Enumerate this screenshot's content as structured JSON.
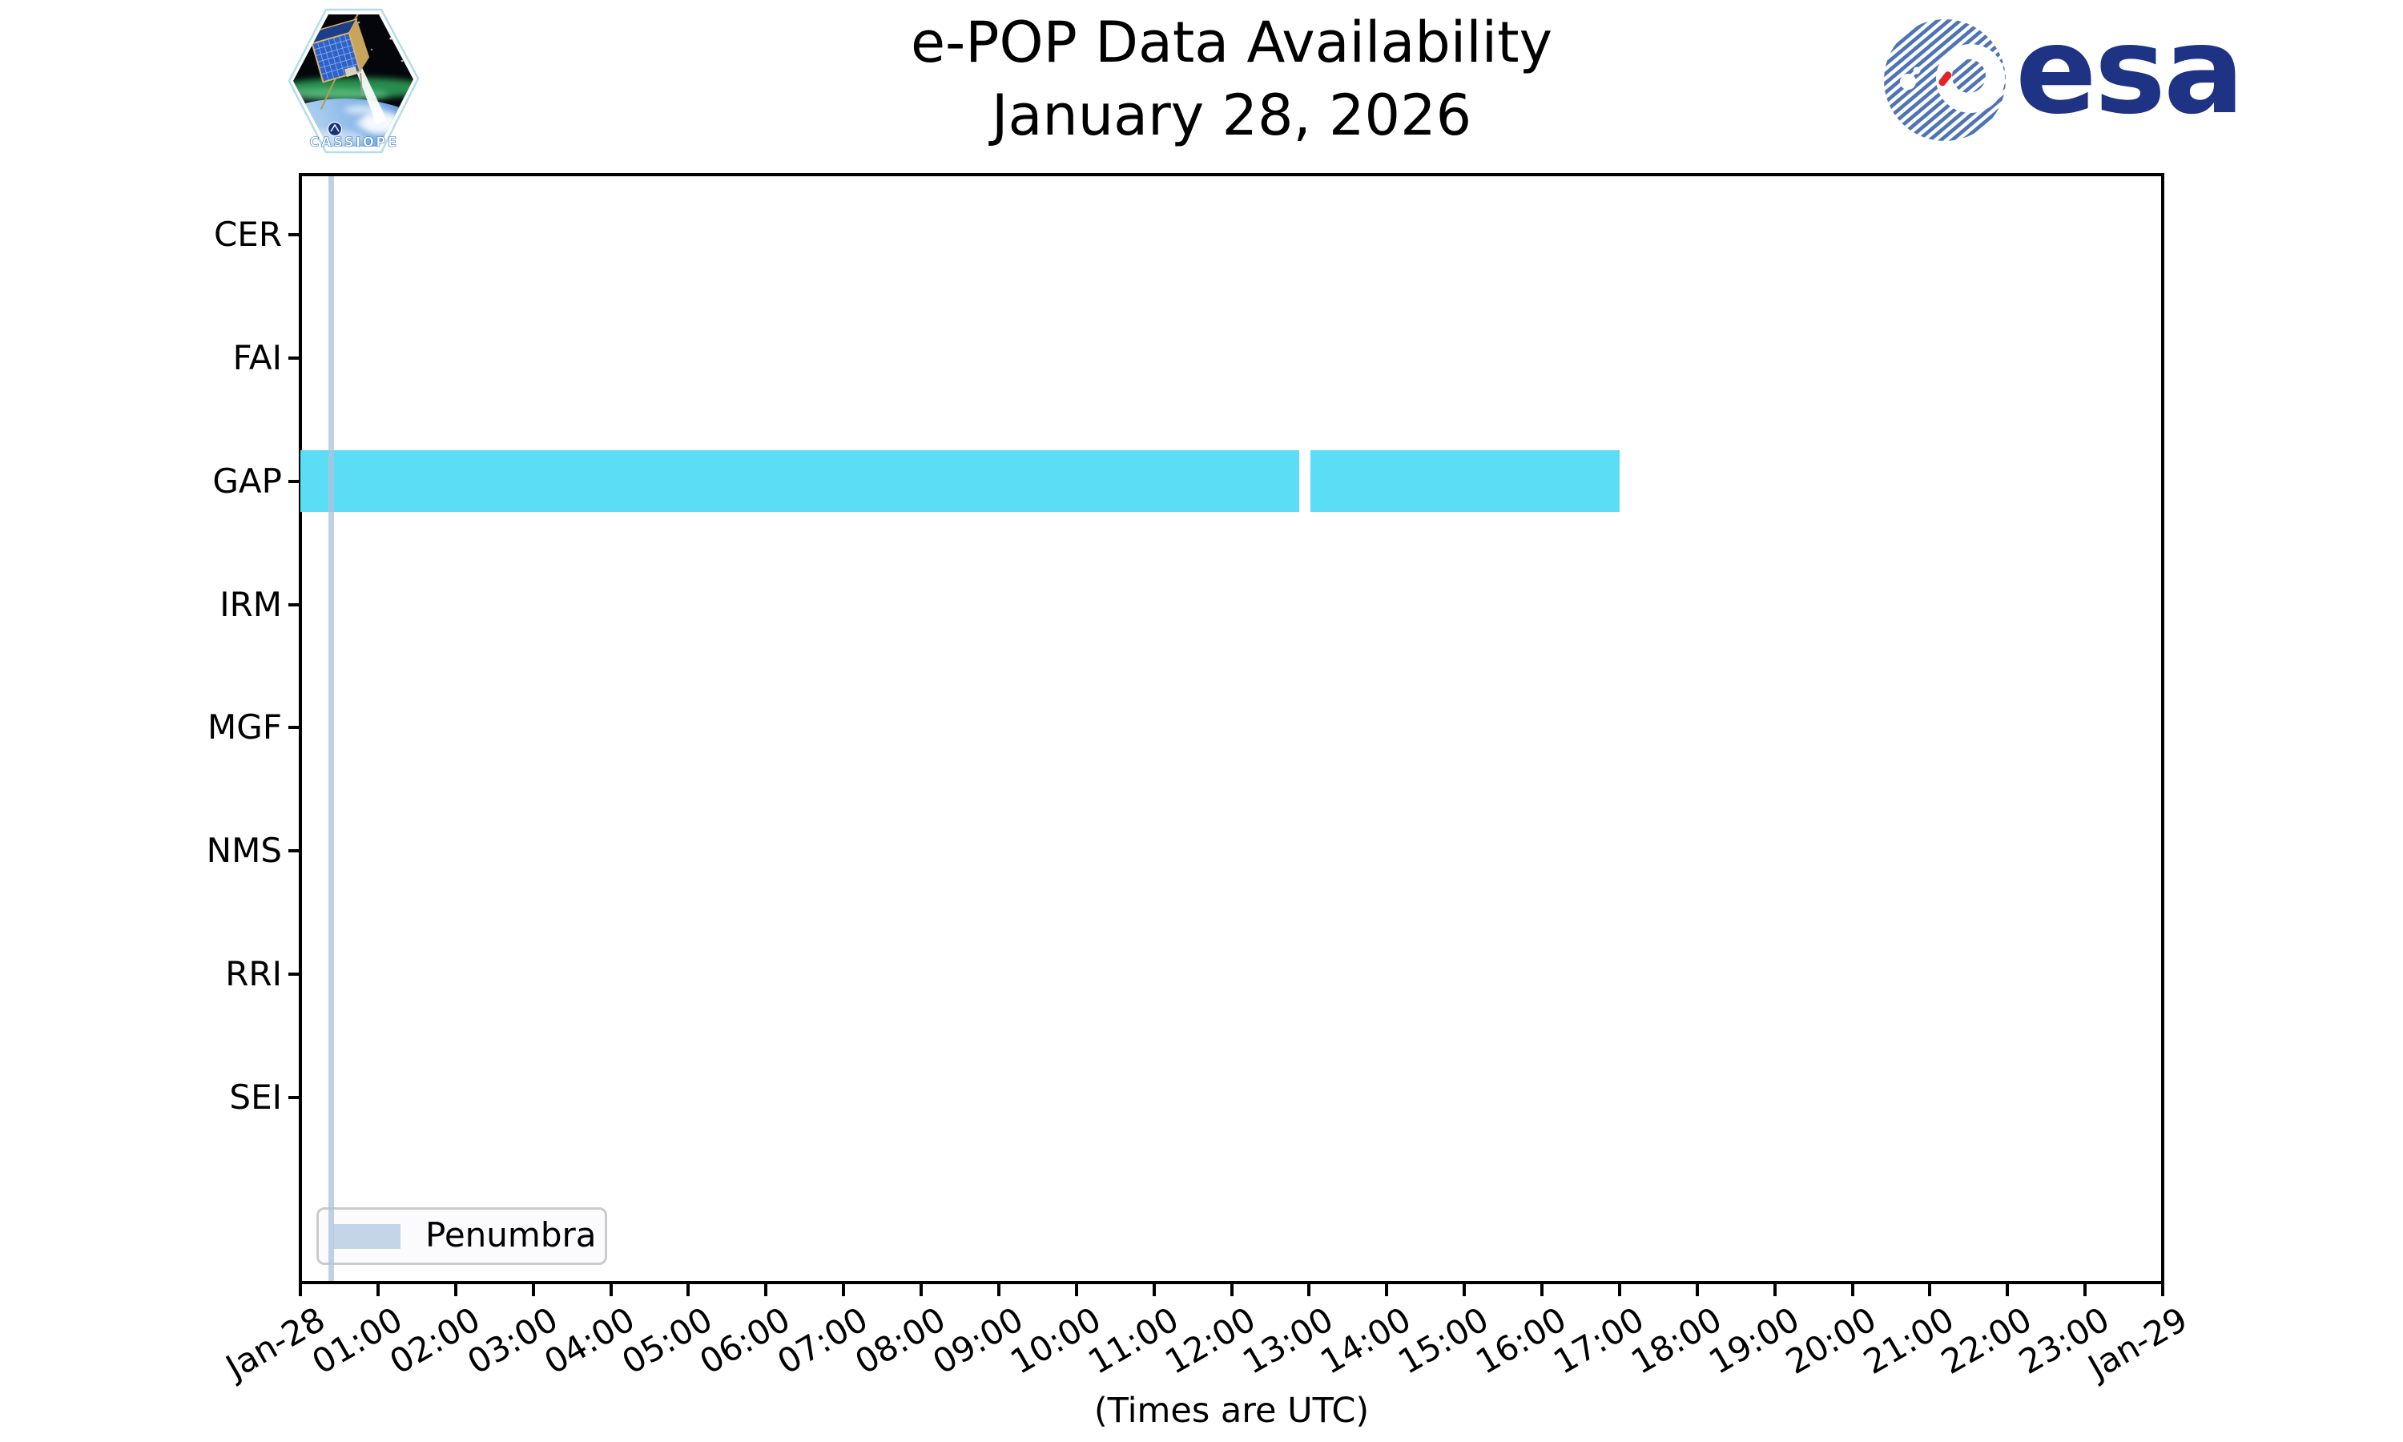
{
  "title": "e-POP Data Availability",
  "subtitle": "January 28, 2026",
  "branding": {
    "mission_patch_text": "CASSIOPE",
    "esa_wordmark": "esa"
  },
  "chart_data": {
    "type": "gantt",
    "title": "e-POP Data Availability",
    "subtitle": "January 28, 2026",
    "xlabel": "(Times are UTC)",
    "grid": false,
    "x_axis": {
      "start": "Jan-28 00:00",
      "end": "Jan-29 00:00",
      "tick_interval_hours": 1,
      "tick_labels": [
        "Jan-28",
        "01:00",
        "02:00",
        "03:00",
        "04:00",
        "05:00",
        "06:00",
        "07:00",
        "08:00",
        "09:00",
        "10:00",
        "11:00",
        "12:00",
        "13:00",
        "14:00",
        "15:00",
        "16:00",
        "17:00",
        "18:00",
        "19:00",
        "20:00",
        "21:00",
        "22:00",
        "23:00",
        "Jan-29"
      ]
    },
    "instruments": [
      "CER",
      "FAI",
      "GAP",
      "IRM",
      "MGF",
      "NMS",
      "RRI",
      "SEI"
    ],
    "availability": [
      {
        "instrument": "GAP",
        "color": "#5BDDF5",
        "segments": [
          {
            "start": "00:00",
            "end": "12:52",
            "start_hour": 0.0,
            "end_hour": 12.87
          },
          {
            "start": "13:01",
            "end": "17:00",
            "start_hour": 13.02,
            "end_hour": 17.0
          }
        ]
      }
    ],
    "penumbra": {
      "color": "rgba(176,196,222,0.8)",
      "bands": [
        {
          "start_hour": 0.36,
          "end_hour": 0.43,
          "approx_time": "00:23"
        }
      ]
    },
    "legend": {
      "position": "lower left",
      "entries": [
        {
          "label": "Penumbra",
          "color": "#c5d5e8"
        }
      ]
    }
  }
}
